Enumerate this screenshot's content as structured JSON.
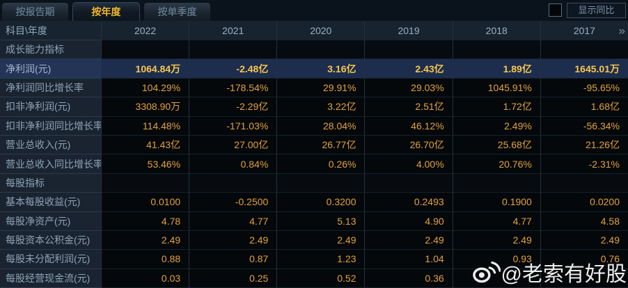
{
  "tabs": [
    {
      "label": "按报告期",
      "active": false
    },
    {
      "label": "按年度",
      "active": true
    },
    {
      "label": "按单季度",
      "active": false
    }
  ],
  "controls": {
    "show_yoy_label": "显示同比",
    "checkbox_checked": false
  },
  "table": {
    "corner_label": "科目\\年度",
    "years": [
      "2022",
      "2021",
      "2020",
      "2019",
      "2018",
      "2017"
    ],
    "more_columns_icon": "»",
    "rows": [
      {
        "label": "成长能力指标",
        "type": "section",
        "values": [
          "",
          "",
          "",
          "",
          "",
          ""
        ]
      },
      {
        "label": "净利润(元)",
        "type": "highlight",
        "values": [
          "1064.84万",
          "-2.48亿",
          "3.16亿",
          "2.43亿",
          "1.89亿",
          "1645.01万"
        ]
      },
      {
        "label": "净利润同比增长率",
        "type": "data",
        "values": [
          "104.29%",
          "-178.54%",
          "29.91%",
          "29.03%",
          "1045.91%",
          "-95.65%"
        ]
      },
      {
        "label": "扣非净利润(元)",
        "type": "data",
        "values": [
          "3308.90万",
          "-2.29亿",
          "3.22亿",
          "2.51亿",
          "1.72亿",
          "1.68亿"
        ]
      },
      {
        "label": "扣非净利润同比增长率",
        "type": "data",
        "values": [
          "114.48%",
          "-171.03%",
          "28.04%",
          "46.12%",
          "2.49%",
          "-56.34%"
        ]
      },
      {
        "label": "营业总收入(元)",
        "type": "data",
        "values": [
          "41.43亿",
          "27.00亿",
          "26.77亿",
          "26.70亿",
          "25.68亿",
          "21.26亿"
        ]
      },
      {
        "label": "营业总收入同比增长率",
        "type": "data",
        "values": [
          "53.46%",
          "0.84%",
          "0.26%",
          "4.00%",
          "20.76%",
          "-2.31%"
        ]
      },
      {
        "label": "每股指标",
        "type": "section",
        "values": [
          "",
          "",
          "",
          "",
          "",
          ""
        ]
      },
      {
        "label": "基本每股收益(元)",
        "type": "data",
        "values": [
          "0.0100",
          "-0.2500",
          "0.3200",
          "0.2493",
          "0.1900",
          "0.0200"
        ]
      },
      {
        "label": "每股净资产(元)",
        "type": "data",
        "values": [
          "4.78",
          "4.77",
          "5.13",
          "4.90",
          "4.77",
          "4.58"
        ]
      },
      {
        "label": "每股资本公积金(元)",
        "type": "data",
        "values": [
          "2.49",
          "2.49",
          "2.49",
          "2.49",
          "2.49",
          "2.49"
        ]
      },
      {
        "label": "每股未分配利润(元)",
        "type": "data",
        "values": [
          "0.88",
          "0.87",
          "1.23",
          "1.04",
          "0.93",
          "0.76"
        ]
      },
      {
        "label": "每股经营现金流(元)",
        "type": "data",
        "values": [
          "0.03",
          "0.25",
          "0.52",
          "0.36",
          "",
          ""
        ]
      }
    ]
  },
  "watermark": {
    "text": "@老索有好股",
    "icon": "weibo-icon"
  },
  "colors": {
    "value_gold": "#e2a23c",
    "highlight_gold": "#f7c74e",
    "tab_active_text": "#f2bb2e",
    "row_highlight_bg": "#1d2d4d",
    "header_bg": "#17242f",
    "label_col_bg": "#1a2430"
  }
}
